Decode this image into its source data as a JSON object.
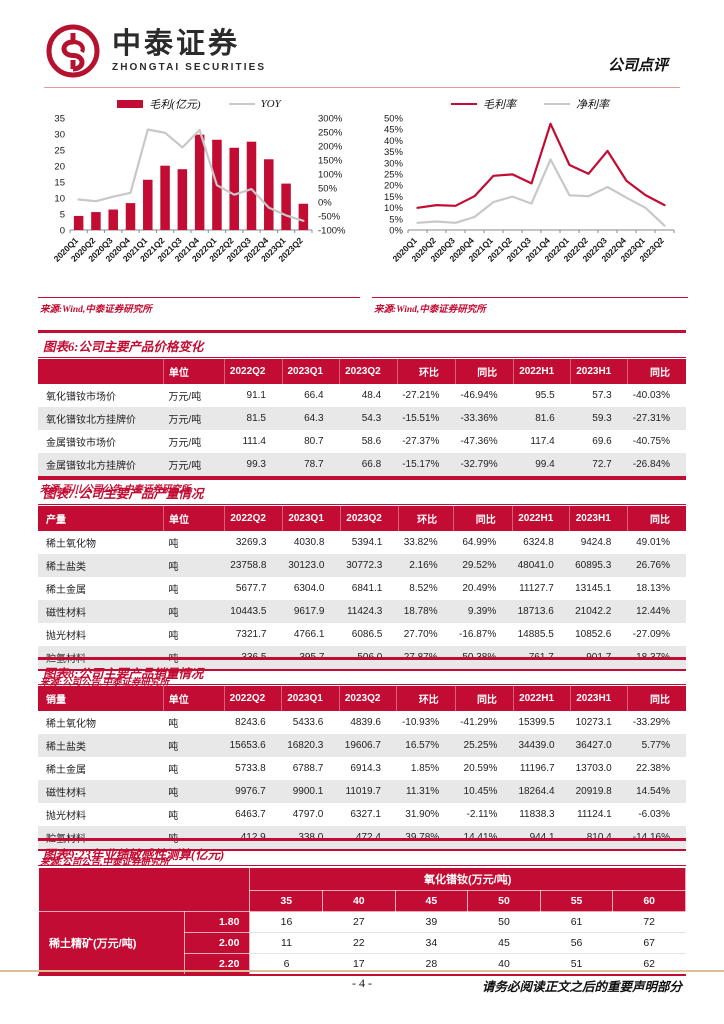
{
  "header": {
    "logo_cn": "中泰证券",
    "logo_en": "ZHONGTAI SECURITIES",
    "report_type": "公司点评"
  },
  "colors": {
    "brand_red": "#C20C33",
    "gray_line": "#C8C8C8",
    "stripe_gray": "#E8E8E8",
    "footer_tan": "#DDBE95",
    "header_pink": "#E59A9A"
  },
  "chart_data": [
    {
      "type": "bar",
      "categories": [
        "2020Q1",
        "2020Q2",
        "2020Q3",
        "2020Q4",
        "2021Q1",
        "2021Q2",
        "2021Q3",
        "2021Q4",
        "2022Q1",
        "2022Q2",
        "2022Q3",
        "2022Q4",
        "2023Q1",
        "2023Q2"
      ],
      "series": [
        {
          "name": "毛利(亿元)",
          "type": "bar",
          "axis": "left",
          "color": "#C20C33",
          "values": [
            4.4,
            5.6,
            6.4,
            8.4,
            15.7,
            20.1,
            19.0,
            29.8,
            28.2,
            25.7,
            27.6,
            22.1,
            14.5,
            8.2
          ]
        },
        {
          "name": "YOY",
          "type": "line",
          "axis": "right",
          "color": "#C8C8C8",
          "values": [
            9,
            3,
            19,
            33,
            259,
            247,
            195,
            257,
            60,
            26,
            46,
            -20,
            -48,
            -67
          ]
        }
      ],
      "left_axis": {
        "min": 0,
        "max": 35,
        "step": 5,
        "suffix": ""
      },
      "right_axis": {
        "min": -100,
        "max": 300,
        "step": 50,
        "suffix": "%"
      },
      "legend_position": "top",
      "grid": false,
      "source": "来源:Wind,中泰证券研究所"
    },
    {
      "type": "line",
      "categories": [
        "2020Q1",
        "2020Q2",
        "2020Q3",
        "2020Q4",
        "2021Q1",
        "2021Q2",
        "2021Q3",
        "2021Q4",
        "2022Q1",
        "2022Q2",
        "2022Q3",
        "2022Q4",
        "2023Q1",
        "2023Q2"
      ],
      "series": [
        {
          "name": "毛利率",
          "type": "line",
          "axis": "left",
          "color": "#C20C33",
          "values": [
            9.9,
            11.1,
            10.8,
            15.1,
            24.2,
            24.8,
            20.8,
            47.4,
            29.0,
            25.1,
            35.3,
            21.9,
            15.6,
            11.1
          ]
        },
        {
          "name": "净利率",
          "type": "line",
          "axis": "left",
          "color": "#C8C8C8",
          "values": [
            3.2,
            3.8,
            3.2,
            5.8,
            12.5,
            14.9,
            11.8,
            31.5,
            15.5,
            15.1,
            19.2,
            14.4,
            9.9,
            1.9
          ]
        }
      ],
      "left_axis": {
        "min": 0,
        "max": 50,
        "step": 5,
        "suffix": "%"
      },
      "legend_position": "top",
      "grid": false,
      "source": "来源:Wind,中泰证券研究所"
    }
  ],
  "tables": [
    {
      "title": "图表6:公司主要产品价格变化",
      "columns": [
        "",
        "单位",
        "2022Q2",
        "2023Q1",
        "2023Q2",
        "环比",
        "同比",
        "2022H1",
        "2023H1",
        "同比"
      ],
      "rows": [
        [
          "氧化镨钕市场价",
          "万元/吨",
          "91.1",
          "66.4",
          "48.4",
          "-27.21%",
          "-46.94%",
          "95.5",
          "57.3",
          "-40.03%"
        ],
        [
          "氧化镨钕北方挂牌价",
          "万元/吨",
          "81.5",
          "64.3",
          "54.3",
          "-15.51%",
          "-33.36%",
          "81.6",
          "59.3",
          "-27.31%"
        ],
        [
          "金属镨钕市场价",
          "万元/吨",
          "111.4",
          "80.7",
          "58.6",
          "-27.37%",
          "-47.36%",
          "117.4",
          "69.6",
          "-40.75%"
        ],
        [
          "金属镨钕北方挂牌价",
          "万元/吨",
          "99.3",
          "78.7",
          "66.8",
          "-15.17%",
          "-32.79%",
          "99.4",
          "72.7",
          "-26.84%"
        ]
      ],
      "source": "来源:百川,公司公告,中泰证券研究所"
    },
    {
      "title": "图表7:公司主要产品产量情况",
      "columns": [
        "产量",
        "单位",
        "2022Q2",
        "2023Q1",
        "2023Q2",
        "环比",
        "同比",
        "2022H1",
        "2023H1",
        "同比"
      ],
      "rows": [
        [
          "稀土氧化物",
          "吨",
          "3269.3",
          "4030.8",
          "5394.1",
          "33.82%",
          "64.99%",
          "6324.8",
          "9424.8",
          "49.01%"
        ],
        [
          "稀土盐类",
          "吨",
          "23758.8",
          "30123.0",
          "30772.3",
          "2.16%",
          "29.52%",
          "48041.0",
          "60895.3",
          "26.76%"
        ],
        [
          "稀土金属",
          "吨",
          "5677.7",
          "6304.0",
          "6841.1",
          "8.52%",
          "20.49%",
          "11127.7",
          "13145.1",
          "18.13%"
        ],
        [
          "磁性材料",
          "吨",
          "10443.5",
          "9617.9",
          "11424.3",
          "18.78%",
          "9.39%",
          "18713.6",
          "21042.2",
          "12.44%"
        ],
        [
          "抛光材料",
          "吨",
          "7321.7",
          "4766.1",
          "6086.5",
          "27.70%",
          "-16.87%",
          "14885.5",
          "10852.6",
          "-27.09%"
        ],
        [
          "贮氢材料",
          "吨",
          "336.5",
          "395.7",
          "506.0",
          "27.87%",
          "50.38%",
          "761.7",
          "901.7",
          "18.37%"
        ]
      ],
      "source": "来源:公司公告,中泰证券研究所"
    },
    {
      "title": "图表8:公司主要产品销量情况",
      "columns": [
        "销量",
        "单位",
        "2022Q2",
        "2023Q1",
        "2023Q2",
        "环比",
        "同比",
        "2022H1",
        "2023H1",
        "同比"
      ],
      "rows": [
        [
          "稀土氧化物",
          "吨",
          "8243.6",
          "5433.6",
          "4839.6",
          "-10.93%",
          "-41.29%",
          "15399.5",
          "10273.1",
          "-33.29%"
        ],
        [
          "稀土盐类",
          "吨",
          "15653.6",
          "16820.3",
          "19606.7",
          "16.57%",
          "25.25%",
          "34439.0",
          "36427.0",
          "5.77%"
        ],
        [
          "稀土金属",
          "吨",
          "5733.8",
          "6788.7",
          "6914.3",
          "1.85%",
          "20.59%",
          "11196.7",
          "13703.0",
          "22.38%"
        ],
        [
          "磁性材料",
          "吨",
          "9976.7",
          "9900.1",
          "11019.7",
          "11.31%",
          "10.45%",
          "18264.4",
          "20919.8",
          "14.54%"
        ],
        [
          "抛光材料",
          "吨",
          "6463.7",
          "4797.0",
          "6327.1",
          "31.90%",
          "-2.11%",
          "11838.3",
          "11124.1",
          "-6.03%"
        ],
        [
          "贮氢材料",
          "吨",
          "412.9",
          "338.0",
          "472.4",
          "39.78%",
          "14.41%",
          "944.1",
          "810.4",
          "-14.16%"
        ]
      ],
      "source": "来源:公司公告,中泰证券研究所"
    }
  ],
  "sensitivity_table": {
    "title": "图表9:23年业绩敏感性测算(亿元)",
    "col_group_label": "氧化镨钕(万元/吨)",
    "col_headers": [
      "35",
      "40",
      "45",
      "50",
      "55",
      "60"
    ],
    "row_group_label": "稀土精矿(万元/吨)",
    "row_headers": [
      "1.80",
      "2.00",
      "2.20"
    ],
    "values": [
      [
        "16",
        "27",
        "39",
        "50",
        "61",
        "72"
      ],
      [
        "11",
        "22",
        "34",
        "45",
        "56",
        "67"
      ],
      [
        "6",
        "17",
        "28",
        "40",
        "51",
        "62"
      ]
    ]
  },
  "footer": {
    "page_number": "- 4 -",
    "disclaimer": "请务必阅读正文之后的重要声明部分"
  }
}
